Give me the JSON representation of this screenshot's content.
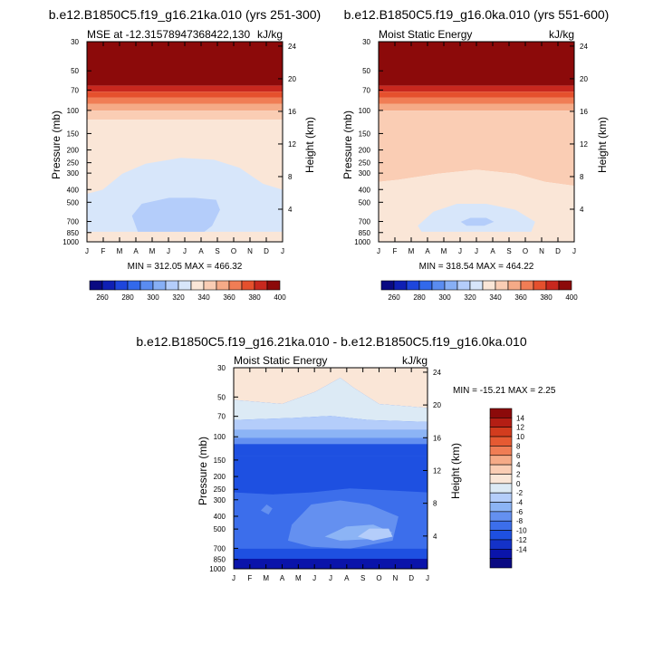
{
  "chart_data": [
    {
      "type": "heatmap",
      "title": "b.e12.B1850C5.f19_g16.21ka.010 (yrs 251-300)",
      "subtitle_left": "MSE at -12.3157894736842​2,130",
      "subtitle_right": "kJ/kg",
      "ylabel": "Pressure (mb)",
      "ylabel_right": "Height (km)",
      "x_ticks": [
        "J",
        "F",
        "M",
        "A",
        "M",
        "J",
        "J",
        "A",
        "S",
        "O",
        "N",
        "D",
        "J"
      ],
      "p_ticks": [
        "30",
        "50",
        "70",
        "100",
        "150",
        "200",
        "250",
        "300",
        "400",
        "500",
        "700",
        "850",
        "1000"
      ],
      "p_values": [
        30,
        50,
        70,
        100,
        150,
        200,
        250,
        300,
        400,
        500,
        700,
        850,
        1000
      ],
      "z_ticks": [
        "24",
        "20",
        "16",
        "12",
        "8",
        "4"
      ],
      "z_values": [
        24,
        20,
        16,
        12,
        8,
        4
      ],
      "stats": "MIN = 312.05 MAX = 466.32",
      "contour_levels": [
        260,
        270,
        280,
        290,
        300,
        310,
        320,
        330,
        340,
        350,
        360,
        370,
        380,
        390,
        400
      ],
      "colorbar_labels": [
        "260",
        "280",
        "300",
        "320",
        "340",
        "360",
        "380",
        "400"
      ]
    },
    {
      "type": "heatmap",
      "title": "b.e12.B1850C5.f19_g16.0ka.010 (yrs 551-600)",
      "subtitle_left": "Moist Static Energy",
      "subtitle_right": "kJ/kg",
      "ylabel": "Pressure (mb)",
      "ylabel_right": "Height (km)",
      "x_ticks": [
        "J",
        "F",
        "M",
        "A",
        "M",
        "J",
        "J",
        "A",
        "S",
        "O",
        "N",
        "D",
        "J"
      ],
      "p_ticks": [
        "30",
        "50",
        "70",
        "100",
        "150",
        "200",
        "250",
        "300",
        "400",
        "500",
        "700",
        "850",
        "1000"
      ],
      "p_values": [
        30,
        50,
        70,
        100,
        150,
        200,
        250,
        300,
        400,
        500,
        700,
        850,
        1000
      ],
      "z_ticks": [
        "24",
        "20",
        "16",
        "12",
        "8",
        "4"
      ],
      "z_values": [
        24,
        20,
        16,
        12,
        8,
        4
      ],
      "stats": "MIN = 318.54 MAX = 464.22",
      "contour_levels": [
        260,
        270,
        280,
        290,
        300,
        310,
        320,
        330,
        340,
        350,
        360,
        370,
        380,
        390,
        400
      ],
      "colorbar_labels": [
        "260",
        "280",
        "300",
        "320",
        "340",
        "360",
        "380",
        "400"
      ]
    },
    {
      "type": "heatmap",
      "title": "b.e12.B1850C5.f19_g16.21ka.010 - b.e12.B1850C5.f19_g16.0ka.010",
      "subtitle_left": "Moist Static Energy",
      "subtitle_right": "kJ/kg",
      "ylabel": "Pressure (mb)",
      "ylabel_right": "Height (km)",
      "x_ticks": [
        "J",
        "F",
        "M",
        "A",
        "M",
        "J",
        "J",
        "A",
        "S",
        "O",
        "N",
        "D",
        "J"
      ],
      "p_ticks": [
        "30",
        "50",
        "70",
        "100",
        "150",
        "200",
        "250",
        "300",
        "400",
        "500",
        "700",
        "850",
        "1000"
      ],
      "p_values": [
        30,
        50,
        70,
        100,
        150,
        200,
        250,
        300,
        400,
        500,
        700,
        850,
        1000
      ],
      "z_ticks": [
        "24",
        "20",
        "16",
        "12",
        "8",
        "4"
      ],
      "z_values": [
        24,
        20,
        16,
        12,
        8,
        4
      ],
      "stats": "MIN = -15.21 MAX =   2.25",
      "contour_levels": [
        -16,
        -14,
        -12,
        -10,
        -8,
        -6,
        -4,
        -2,
        0,
        2,
        4,
        6,
        8,
        10,
        12,
        14,
        16
      ],
      "colorbar_labels": [
        "14",
        "12",
        "10",
        "8",
        "6",
        "4",
        "2",
        "0",
        "-2",
        "-4",
        "-6",
        "-8",
        "-10",
        "-12",
        "-14"
      ]
    }
  ],
  "colors": {
    "palette15": [
      "#0a0a82",
      "#0f1fb4",
      "#1e46dc",
      "#3269eb",
      "#5a8cf0",
      "#87aff5",
      "#b4cdfa",
      "#d7e6fa",
      "#fae6d7",
      "#facdb4",
      "#f5aa87",
      "#f07d55",
      "#e5502d",
      "#c8281e",
      "#8c0a0a"
    ],
    "palette17": [
      "#0a0a82",
      "#0a14aa",
      "#1432c8",
      "#1e50e1",
      "#3c6eeb",
      "#6490f0",
      "#8cb4f5",
      "#b4cdfa",
      "#dceaf5",
      "#fae6d7",
      "#facdb4",
      "#f5aa87",
      "#f07d55",
      "#e65a32",
      "#d23c1e",
      "#b41e14",
      "#8c0a0a"
    ]
  }
}
